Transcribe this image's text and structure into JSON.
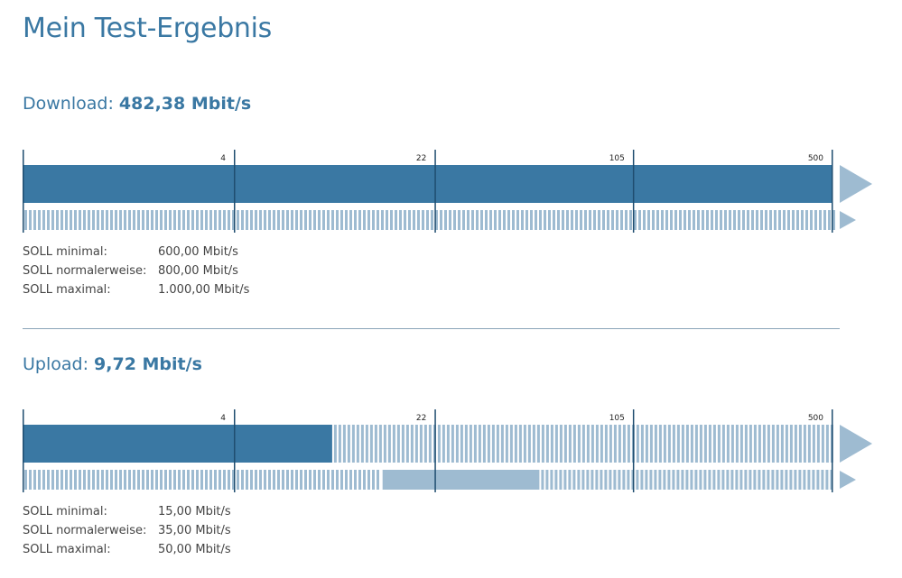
{
  "page": {
    "title": "Mein Test-Ergebnis"
  },
  "colors": {
    "primary": "#3a78a3",
    "light": "#9ebbd1",
    "tick": "#1f4d6f"
  },
  "scale": {
    "max": 500,
    "ticks": [
      {
        "value": 4,
        "label": "4"
      },
      {
        "value": 22,
        "label": "22"
      },
      {
        "value": 105,
        "label": "105"
      },
      {
        "value": 500,
        "label": "500"
      }
    ]
  },
  "download": {
    "label": "Download:",
    "value": "482,38 Mbit/s",
    "measured_mbit": 482.38,
    "measured_fraction": 0.996,
    "lower_bar": {
      "type": "full_hatched"
    },
    "soll": [
      {
        "label": "SOLL minimal:",
        "value": "600,00 Mbit/s"
      },
      {
        "label": "SOLL normalerweise:",
        "value": "800,00 Mbit/s"
      },
      {
        "label": "SOLL maximal:",
        "value": "1.000,00 Mbit/s"
      }
    ]
  },
  "upload": {
    "label": "Upload:",
    "value": "9,72 Mbit/s",
    "measured_mbit": 9.72,
    "measured_fraction": 0.381,
    "lower_bar": {
      "type": "range",
      "solid_start_fraction": 0.443,
      "solid_end_fraction": 0.636
    },
    "soll": [
      {
        "label": "SOLL minimal:",
        "value": "15,00 Mbit/s"
      },
      {
        "label": "SOLL normalerweise:",
        "value": "35,00 Mbit/s"
      },
      {
        "label": "SOLL maximal:",
        "value": "50,00 Mbit/s"
      }
    ]
  }
}
